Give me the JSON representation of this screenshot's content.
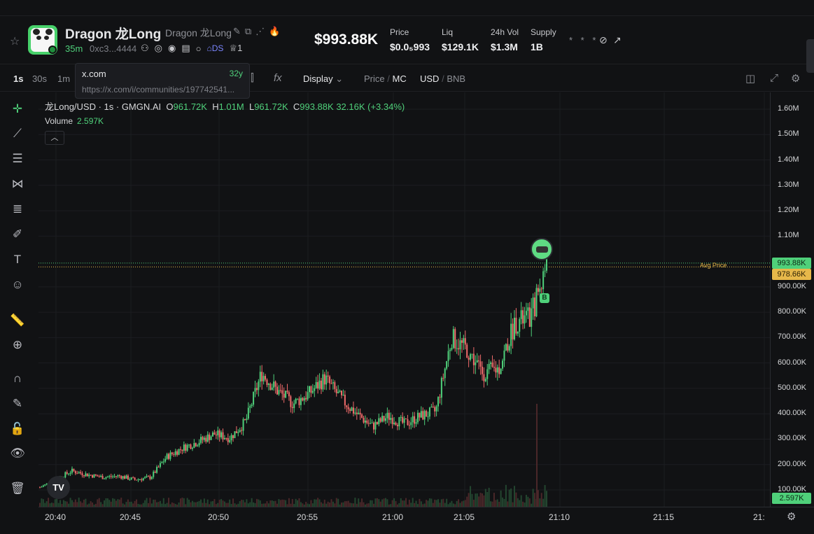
{
  "header": {
    "token_name": "Dragon 龙Long",
    "token_alias": "Dragon 龙Long",
    "age": "35m",
    "address": "0xc3...4444",
    "ds_label": "DS",
    "holders_count": "1",
    "market_cap": "$993.88K",
    "stats": [
      {
        "label": "Price",
        "value": "$0.0₅993"
      },
      {
        "label": "Liq",
        "value": "$129.1K"
      },
      {
        "label": "24h Vol",
        "value": "$1.3M"
      },
      {
        "label": "Supply",
        "value": "1B"
      }
    ],
    "masked": "* * *"
  },
  "toolbar": {
    "intervals": [
      "1s",
      "30s",
      "1m"
    ],
    "active_interval": "1s",
    "display": "Display",
    "price_label": "Price",
    "mc_label": "MC",
    "usd_label": "USD",
    "bnb_label": "BNB",
    "slash": "/"
  },
  "tooltip": {
    "site": "x.com",
    "age": "32y",
    "url": "https://x.com/i/communities/197742541..."
  },
  "legend": {
    "symbol": "龙Long/USD · 1s · GMGN.AI",
    "o_label": "O",
    "o": "961.72K",
    "h_label": "H",
    "h": "1.01M",
    "l_label": "L",
    "l": "961.72K",
    "c_label": "C",
    "c": "993.88K",
    "change": "32.16K (+3.34%)",
    "volume_label": "Volume",
    "volume": "2.597K",
    "avg_price_label": "Avg Price",
    "marker_b": "B"
  },
  "icons": {
    "tv_logo": "TV"
  },
  "colors": {
    "up": "#4fd07a",
    "down": "#f06b6b",
    "avg_line": "#e7b84a",
    "price_tag": "#4fd07a"
  },
  "chart_data": {
    "type": "candlestick",
    "title": "龙Long/USD · 1s · GMGN.AI",
    "ylim": [
      60000,
      1680000
    ],
    "y_ticks": [
      "1.60M",
      "1.50M",
      "1.40M",
      "1.30M",
      "1.20M",
      "1.10M",
      "900.00K",
      "800.00K",
      "700.00K",
      "600.00K",
      "500.00K",
      "400.00K",
      "300.00K",
      "200.00K",
      "100.00K"
    ],
    "x_ticks": [
      "20:40",
      "20:45",
      "20:50",
      "20:55",
      "21:00",
      "21:05",
      "21:10",
      "21:15",
      "21:"
    ],
    "current_price_tag": "993.88K",
    "avg_price_tag": "978.66K",
    "volume_tag": "2.597K",
    "current_price": 993880,
    "avg_price": 978660,
    "series": [
      {
        "t": "20:38",
        "v": 110000
      },
      {
        "t": "20:39",
        "v": 140000
      },
      {
        "t": "20:40",
        "v": 175000
      },
      {
        "t": "20:41",
        "v": 160000
      },
      {
        "t": "20:42",
        "v": 150000
      },
      {
        "t": "20:43",
        "v": 155000
      },
      {
        "t": "20:44",
        "v": 140000
      },
      {
        "t": "20:45",
        "v": 150000
      },
      {
        "t": "20:46",
        "v": 230000
      },
      {
        "t": "20:47",
        "v": 265000
      },
      {
        "t": "20:48",
        "v": 290000
      },
      {
        "t": "20:49",
        "v": 320000
      },
      {
        "t": "20:50",
        "v": 305000
      },
      {
        "t": "20:51",
        "v": 370000
      },
      {
        "t": "20:52",
        "v": 560000
      },
      {
        "t": "20:53",
        "v": 490000
      },
      {
        "t": "20:54",
        "v": 440000
      },
      {
        "t": "20:55",
        "v": 480000
      },
      {
        "t": "20:56",
        "v": 540000
      },
      {
        "t": "20:57",
        "v": 460000
      },
      {
        "t": "20:58",
        "v": 400000
      },
      {
        "t": "20:59",
        "v": 350000
      },
      {
        "t": "21:00",
        "v": 390000
      },
      {
        "t": "21:01",
        "v": 360000
      },
      {
        "t": "21:02",
        "v": 390000
      },
      {
        "t": "21:03",
        "v": 410000
      },
      {
        "t": "21:04",
        "v": 700000
      },
      {
        "t": "21:05",
        "v": 650000
      },
      {
        "t": "21:06",
        "v": 560000
      },
      {
        "t": "21:07",
        "v": 580000
      },
      {
        "t": "21:08",
        "v": 760000
      },
      {
        "t": "21:09",
        "v": 780000
      },
      {
        "t": "21:09:30",
        "v": 993880
      }
    ]
  }
}
